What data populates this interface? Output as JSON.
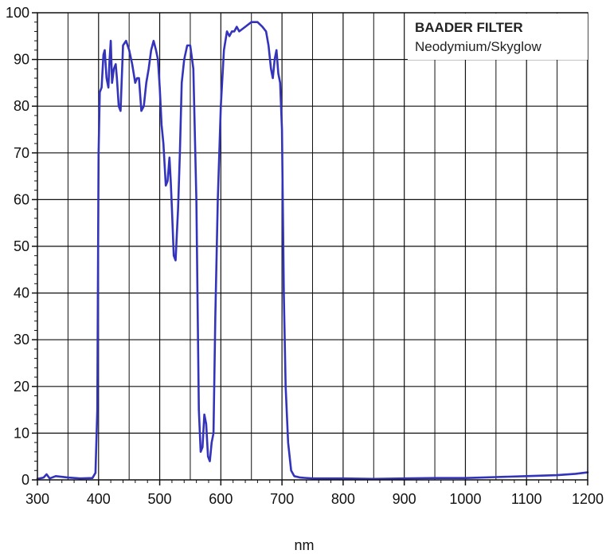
{
  "chart_data": {
    "type": "line",
    "xlabel": "nm",
    "ylabel": "",
    "xlim": [
      300,
      1200
    ],
    "ylim": [
      0,
      100
    ],
    "x_ticks": [
      300,
      400,
      500,
      600,
      700,
      800,
      900,
      1000,
      1100,
      1200
    ],
    "y_ticks": [
      0,
      10,
      20,
      30,
      40,
      50,
      60,
      70,
      80,
      90,
      100
    ],
    "grid": true,
    "legend_placement": "top-right",
    "legend": {
      "title": "BAADER FILTER",
      "subtitle": "Neodymium/Skyglow"
    },
    "series": [
      {
        "color": "#3333bb",
        "x": [
          300,
          310,
          315,
          320,
          330,
          350,
          370,
          390,
          395,
          398,
          400,
          402,
          405,
          408,
          410,
          413,
          416,
          418,
          420,
          422,
          425,
          428,
          430,
          433,
          436,
          440,
          445,
          450,
          455,
          460,
          463,
          466,
          470,
          474,
          478,
          482,
          486,
          490,
          494,
          497,
          500,
          503,
          506,
          510,
          513,
          516,
          518,
          520,
          523,
          526,
          530,
          533,
          536,
          540,
          545,
          550,
          555,
          560,
          564,
          567,
          570,
          573,
          576,
          579,
          582,
          585,
          588,
          591,
          595,
          600,
          605,
          610,
          614,
          618,
          622,
          626,
          630,
          640,
          650,
          660,
          668,
          674,
          678,
          682,
          685,
          688,
          691,
          694,
          697,
          700,
          703,
          706,
          710,
          715,
          720,
          730,
          750,
          800,
          850,
          900,
          950,
          1000,
          1050,
          1100,
          1150,
          1180,
          1200
        ],
        "y": [
          0.2,
          0.5,
          1.2,
          0.3,
          0.8,
          0.5,
          0.3,
          0.4,
          1.5,
          15,
          70,
          83,
          84,
          91,
          92,
          86,
          84,
          90,
          94,
          85,
          88,
          89,
          86,
          80,
          79,
          93,
          94,
          92,
          89,
          85,
          86,
          86,
          79,
          80,
          85,
          88,
          92,
          94,
          92,
          90,
          84,
          76,
          72,
          63,
          64,
          69,
          64,
          58,
          48,
          47,
          58,
          70,
          85,
          90,
          93,
          93,
          88,
          60,
          15,
          6,
          7,
          14,
          12,
          5,
          4,
          8,
          10,
          35,
          60,
          80,
          92,
          96,
          95,
          96,
          96,
          97,
          96,
          97,
          98,
          98,
          97,
          96,
          93,
          88,
          86,
          90,
          92,
          87,
          85,
          75,
          40,
          20,
          8,
          2,
          0.8,
          0.5,
          0.3,
          0.3,
          0.2,
          0.3,
          0.4,
          0.4,
          0.6,
          0.8,
          1.0,
          1.3,
          1.6
        ]
      }
    ]
  }
}
